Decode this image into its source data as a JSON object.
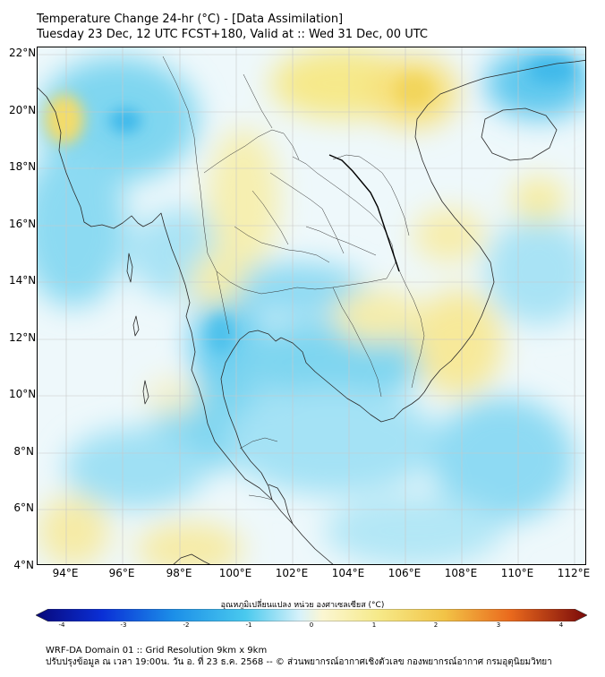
{
  "header": {
    "title_line1": "Temperature Change 24-hr (°C) - [Data Assimilation]",
    "title_line2": "Tuesday 23 Dec, 12 UTC FCST+180, Valid at :: Wed 31 Dec, 00 UTC"
  },
  "map": {
    "lat_labels": [
      "22°N",
      "20°N",
      "18°N",
      "16°N",
      "14°N",
      "12°N",
      "10°N",
      "8°N",
      "6°N",
      "4°N"
    ],
    "lon_labels": [
      "94°E",
      "96°E",
      "98°E",
      "100°E",
      "102°E",
      "104°E",
      "106°E",
      "108°E",
      "110°E",
      "112°E"
    ],
    "extent": {
      "lon": [
        93,
        112.5
      ],
      "lat": [
        4,
        22.2
      ]
    },
    "grid": true,
    "colors": {
      "ocean_base": "#eef8fb",
      "cool": "#4fc3ea",
      "warm": "#f5e98a",
      "coast": "#222222"
    }
  },
  "colorbar": {
    "label": "อุณหภูมิเปลี่ยนแปลง หน่วย องศาเซลเซียส (°C)",
    "ticks": [
      "-4",
      "-3",
      "-2",
      "-1",
      "0",
      "1",
      "2",
      "3",
      "4"
    ],
    "range": [
      -4,
      4
    ]
  },
  "footer": {
    "line1": "WRF-DA Domain 01 :: Grid Resolution 9km x 9km",
    "line2": "ปรับปรุงข้อมูล ณ เวลา 19:00น. วัน อ. ที่ 23 ธ.ค. 2568 -- © ส่วนพยากรณ์อากาศเชิงตัวเลข กองพยากรณ์อากาศ กรมอุตุนิยมวิทยา"
  }
}
